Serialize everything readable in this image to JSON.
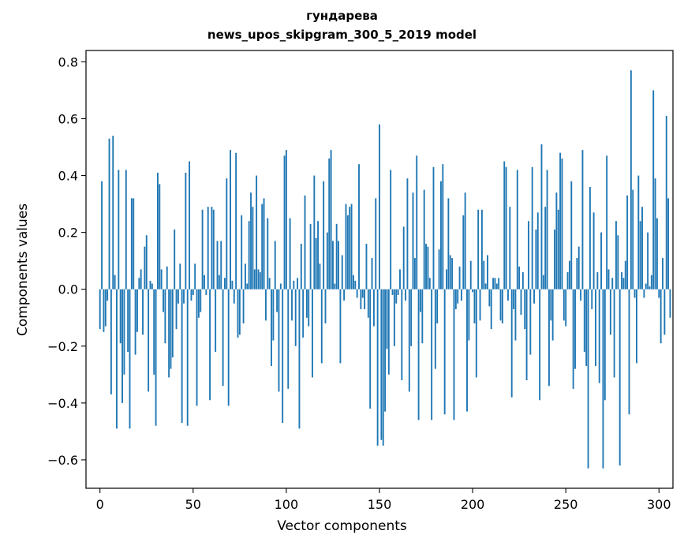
{
  "chart_data": {
    "type": "bar",
    "title_line1": "гундарева",
    "title_line2": "news_upos_skipgram_300_5_2019 model",
    "xlabel": "Vector components",
    "ylabel": "Components values",
    "xlim": [
      -7.5,
      307.5
    ],
    "ylim": [
      -0.7,
      0.84
    ],
    "x_ticks": [
      {
        "value": 0,
        "label": "0"
      },
      {
        "value": 50,
        "label": "50"
      },
      {
        "value": 100,
        "label": "100"
      },
      {
        "value": 150,
        "label": "150"
      },
      {
        "value": 200,
        "label": "200"
      },
      {
        "value": 250,
        "label": "250"
      },
      {
        "value": 300,
        "label": "300"
      }
    ],
    "y_ticks": [
      {
        "value": -0.6,
        "label": "−0.6"
      },
      {
        "value": -0.4,
        "label": "−0.4"
      },
      {
        "value": -0.2,
        "label": "−0.2"
      },
      {
        "value": 0.0,
        "label": "0.0"
      },
      {
        "value": 0.2,
        "label": "0.2"
      },
      {
        "value": 0.4,
        "label": "0.4"
      },
      {
        "value": 0.6,
        "label": "0.6"
      },
      {
        "value": 0.8,
        "label": "0.8"
      }
    ],
    "bar_color": "#1f77b4",
    "values": [
      -0.14,
      0.38,
      -0.15,
      -0.13,
      -0.04,
      0.53,
      -0.37,
      0.54,
      0.05,
      -0.49,
      0.42,
      -0.19,
      -0.4,
      -0.3,
      0.42,
      -0.22,
      -0.49,
      0.32,
      0.32,
      -0.23,
      -0.15,
      0.04,
      0.07,
      -0.16,
      0.15,
      0.19,
      -0.36,
      0.03,
      0.02,
      -0.3,
      -0.48,
      0.41,
      0.37,
      0.07,
      -0.08,
      -0.19,
      0.08,
      -0.31,
      -0.28,
      -0.24,
      0.21,
      -0.14,
      -0.05,
      0.09,
      -0.47,
      -0.05,
      0.41,
      -0.48,
      0.45,
      -0.04,
      -0.02,
      0.09,
      -0.41,
      -0.1,
      -0.08,
      0.28,
      0.05,
      -0.02,
      0.29,
      -0.39,
      0.29,
      0.28,
      -0.22,
      0.17,
      0.05,
      0.17,
      -0.34,
      0.04,
      0.39,
      -0.41,
      0.49,
      0.03,
      -0.05,
      0.48,
      -0.17,
      -0.16,
      0.26,
      -0.12,
      0.09,
      0.02,
      0.24,
      0.34,
      0.29,
      0.07,
      0.4,
      0.07,
      0.06,
      0.3,
      0.32,
      -0.11,
      0.25,
      0.04,
      -0.27,
      -0.18,
      0.17,
      -0.08,
      -0.36,
      0.02,
      -0.47,
      0.47,
      0.49,
      -0.35,
      0.25,
      -0.11,
      0.03,
      -0.2,
      0.04,
      -0.49,
      0.16,
      -0.17,
      0.33,
      -0.1,
      -0.13,
      0.23,
      -0.31,
      0.4,
      0.18,
      0.24,
      0.09,
      -0.26,
      0.38,
      -0.12,
      0.2,
      0.46,
      0.49,
      0.17,
      0.02,
      0.23,
      0.17,
      -0.26,
      0.12,
      -0.04,
      0.3,
      0.26,
      0.29,
      0.3,
      0.05,
      0.03,
      -0.03,
      0.44,
      -0.07,
      -0.03,
      -0.07,
      0.16,
      -0.1,
      -0.42,
      0.11,
      -0.13,
      0.32,
      -0.55,
      0.58,
      -0.53,
      -0.55,
      -0.43,
      -0.21,
      -0.3,
      0.42,
      -0.02,
      -0.2,
      -0.05,
      -0.02,
      0.07,
      -0.32,
      0.22,
      -0.04,
      0.39,
      -0.36,
      -0.2,
      0.34,
      0.11,
      0.47,
      -0.46,
      -0.08,
      -0.19,
      0.35,
      0.16,
      0.15,
      0.04,
      -0.46,
      0.43,
      -0.28,
      -0.12,
      0.14,
      0.38,
      0.44,
      -0.44,
      0.07,
      0.32,
      0.12,
      0.11,
      -0.46,
      -0.07,
      -0.05,
      0.08,
      -0.04,
      0.26,
      0.34,
      -0.43,
      -0.18,
      0.1,
      -0.01,
      -0.12,
      -0.31,
      0.28,
      -0.11,
      0.28,
      0.1,
      0.02,
      0.12,
      -0.06,
      -0.14,
      0.04,
      0.04,
      0.02,
      0.04,
      -0.11,
      -0.12,
      0.45,
      0.43,
      -0.04,
      0.29,
      -0.38,
      -0.07,
      -0.18,
      0.42,
      0.08,
      -0.09,
      0.06,
      -0.14,
      -0.32,
      0.24,
      -0.23,
      0.43,
      -0.05,
      0.21,
      0.27,
      -0.39,
      0.51,
      0.05,
      0.29,
      0.42,
      -0.34,
      -0.11,
      -0.18,
      0.21,
      0.34,
      0.28,
      0.48,
      0.46,
      -0.11,
      -0.13,
      0.06,
      0.1,
      0.38,
      -0.35,
      -0.28,
      0.11,
      0.15,
      -0.04,
      0.49,
      -0.22,
      -0.27,
      -0.63,
      0.36,
      -0.07,
      0.27,
      -0.27,
      0.06,
      -0.33,
      0.2,
      -0.63,
      -0.39,
      0.47,
      0.07,
      -0.16,
      0.04,
      -0.31,
      0.24,
      0.19,
      -0.62,
      0.06,
      0.04,
      0.1,
      0.33,
      -0.44,
      0.77,
      0.35,
      -0.03,
      -0.26,
      0.4,
      0.24,
      0.29,
      -0.03,
      0.02,
      0.2,
      0.01,
      0.05,
      0.7,
      0.39,
      0.25,
      -0.03,
      -0.19,
      0.11,
      -0.16,
      0.61,
      0.32,
      -0.1
    ]
  }
}
